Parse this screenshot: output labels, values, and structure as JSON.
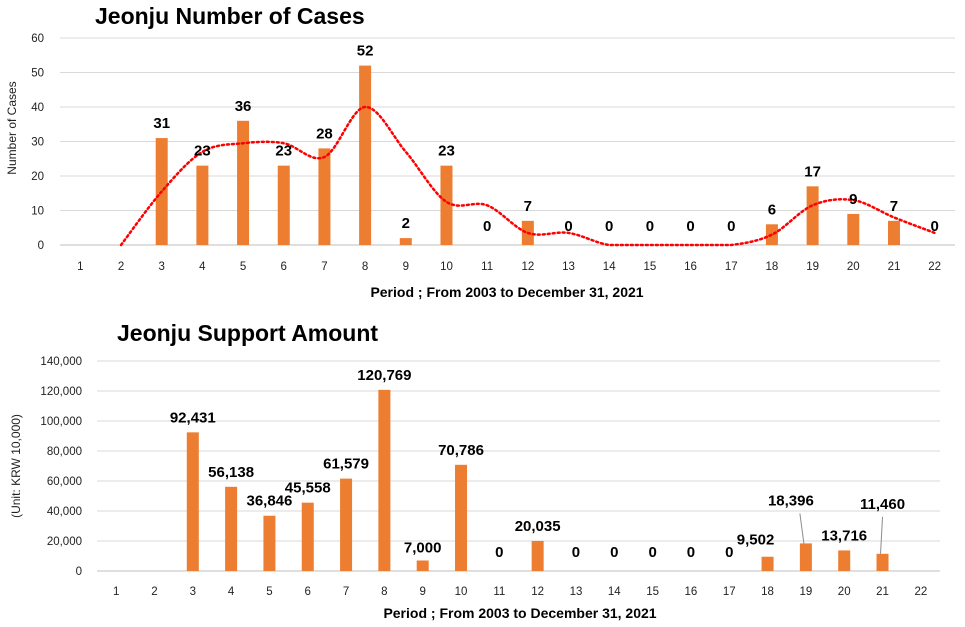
{
  "chart_data": [
    {
      "type": "bar",
      "title": "Jeonju  Number of Cases",
      "xlabel": "Period ; From 2003 to December 31, 2021",
      "ylabel": "Number  of Cases",
      "categories": [
        "1",
        "2",
        "3",
        "4",
        "5",
        "6",
        "7",
        "8",
        "9",
        "10",
        "11",
        "12",
        "13",
        "14",
        "15",
        "16",
        "17",
        "18",
        "19",
        "20",
        "21",
        "22"
      ],
      "series": [
        {
          "values": [
            null,
            null,
            31,
            23,
            36,
            23,
            28,
            52,
            2,
            23,
            0,
            7,
            0,
            0,
            0,
            0,
            0,
            6,
            17,
            9,
            7,
            0
          ]
        }
      ],
      "trendline": {
        "style": "dotted",
        "color": "#ff0000"
      },
      "ylim": [
        0,
        60
      ],
      "yticks": [
        "0",
        "10",
        "20",
        "30",
        "40",
        "50",
        "60"
      ],
      "grid": true,
      "bar_color": "#ed7d31"
    },
    {
      "type": "bar",
      "title": "Jeonju Support Amount",
      "xlabel": "Period ; From 2003 to December 31, 2021",
      "ylabel": "(Unit: KRW 10,000)",
      "categories": [
        "1",
        "2",
        "3",
        "4",
        "5",
        "6",
        "7",
        "8",
        "9",
        "10",
        "11",
        "12",
        "13",
        "14",
        "15",
        "16",
        "17",
        "18",
        "19",
        "20",
        "21",
        "22"
      ],
      "series": [
        {
          "values": [
            null,
            null,
            92431,
            56138,
            36846,
            45558,
            61579,
            120769,
            7000,
            70786,
            0,
            20035,
            0,
            0,
            0,
            0,
            0,
            9502,
            18396,
            13716,
            11460,
            null
          ]
        }
      ],
      "data_labels": [
        null,
        null,
        "92,431",
        "56,138",
        "36,846",
        "45,558",
        "61,579",
        "120,769",
        "7,000",
        "70,786",
        "0",
        "20,035",
        "0",
        "0",
        "0",
        "0",
        "0",
        "9,502",
        "18,396",
        "13,716",
        "11,460",
        null
      ],
      "ylim": [
        0,
        140000
      ],
      "yticks": [
        "0",
        "20,000",
        "40,000",
        "60,000",
        "80,000",
        "100,000",
        "120,000",
        "140,000"
      ],
      "grid": true,
      "bar_color": "#ed7d31"
    }
  ]
}
